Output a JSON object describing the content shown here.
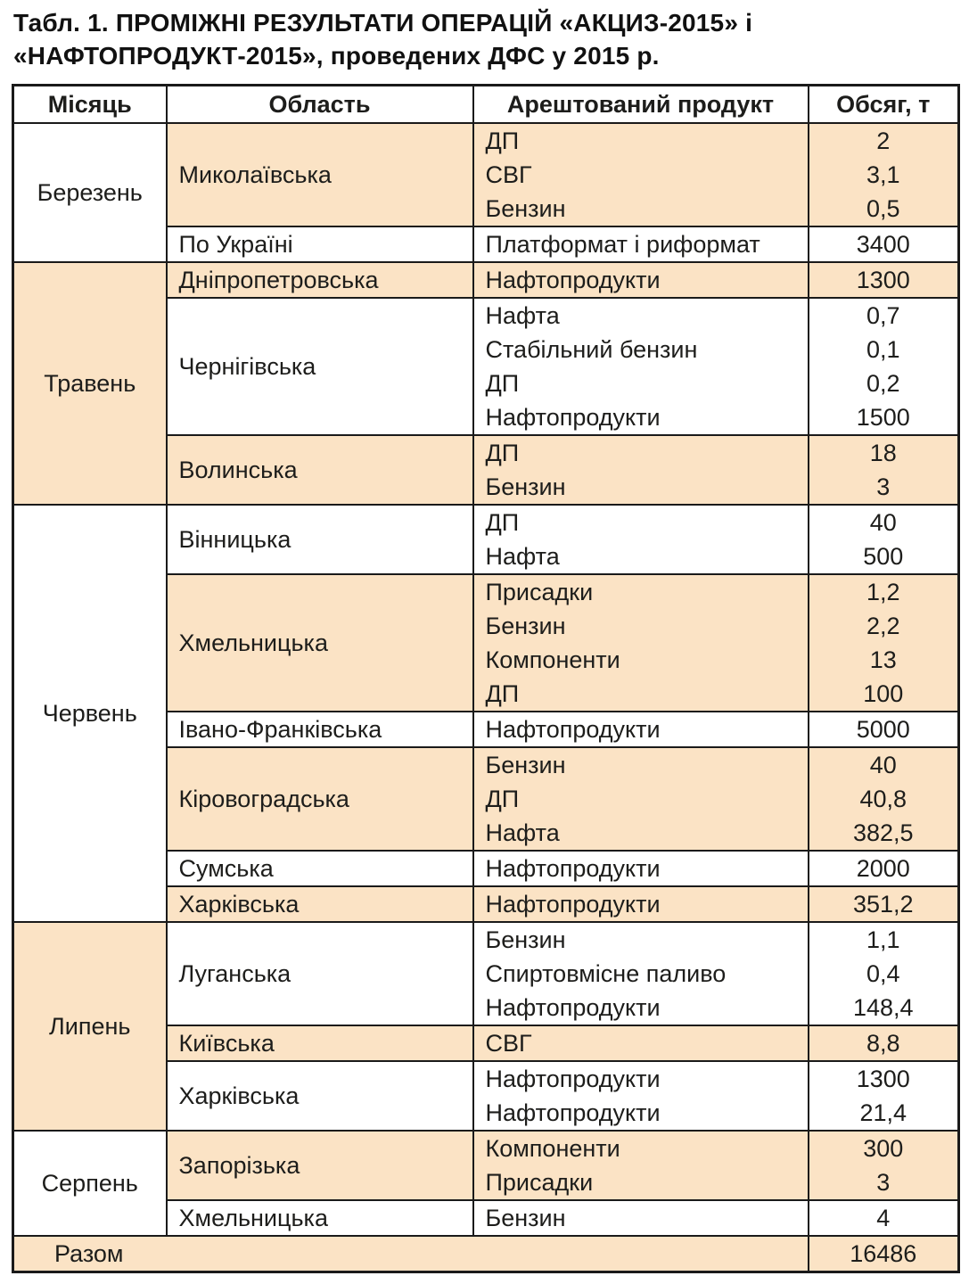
{
  "title_lines": [
    "Табл. 1. ПРОМІЖНІ РЕЗУЛЬТАТИ ОПЕРАЦІЙ «АКЦИЗ-2015» і",
    "«НАФТОПРОДУКТ-2015», проведених ДФС у 2015 р."
  ],
  "colors": {
    "row_shade": "#fbe3c5",
    "border": "#1a1a1a",
    "text": "#1d1d1b",
    "background": "#ffffff"
  },
  "table": {
    "headers": [
      "Місяць",
      "Область",
      "Арештований продукт",
      "Обсяг, т"
    ],
    "months": [
      {
        "name": "Березень",
        "shaded": false,
        "groups": [
          {
            "region": "Миколаївська",
            "shaded": true,
            "items": [
              {
                "product": "ДП",
                "volume": "2"
              },
              {
                "product": "СВГ",
                "volume": "3,1"
              },
              {
                "product": "Бензин",
                "volume": "0,5"
              }
            ]
          },
          {
            "region": "По Україні",
            "shaded": false,
            "items": [
              {
                "product": "Платформат і риформат",
                "volume": "3400"
              }
            ]
          }
        ]
      },
      {
        "name": "Травень",
        "shaded": true,
        "groups": [
          {
            "region": "Дніпропетровська",
            "shaded": true,
            "items": [
              {
                "product": "Нафтопродукти",
                "volume": "1300"
              }
            ]
          },
          {
            "region": "Чернігівська",
            "shaded": false,
            "items": [
              {
                "product": "Нафта",
                "volume": "0,7"
              },
              {
                "product": "Стабільний бензин",
                "volume": "0,1"
              },
              {
                "product": "ДП",
                "volume": "0,2"
              },
              {
                "product": "Нафтопродукти",
                "volume": "1500"
              }
            ]
          },
          {
            "region": "Волинська",
            "shaded": true,
            "items": [
              {
                "product": "ДП",
                "volume": "18"
              },
              {
                "product": "Бензин",
                "volume": "3"
              }
            ]
          }
        ]
      },
      {
        "name": "Червень",
        "shaded": false,
        "groups": [
          {
            "region": "Вінницька",
            "shaded": false,
            "items": [
              {
                "product": "ДП",
                "volume": "40"
              },
              {
                "product": "Нафта",
                "volume": "500"
              }
            ]
          },
          {
            "region": "Хмельницька",
            "shaded": true,
            "items": [
              {
                "product": "Присадки",
                "volume": "1,2"
              },
              {
                "product": "Бензин",
                "volume": "2,2"
              },
              {
                "product": "Компоненти",
                "volume": "13"
              },
              {
                "product": "ДП",
                "volume": "100"
              }
            ]
          },
          {
            "region": "Івано-Франківська",
            "shaded": false,
            "items": [
              {
                "product": "Нафтопродукти",
                "volume": "5000"
              }
            ]
          },
          {
            "region": "Кіровоградська",
            "shaded": true,
            "items": [
              {
                "product": "Бензин",
                "volume": "40"
              },
              {
                "product": "ДП",
                "volume": "40,8"
              },
              {
                "product": "Нафта",
                "volume": "382,5"
              }
            ]
          },
          {
            "region": "Сумська",
            "shaded": false,
            "items": [
              {
                "product": "Нафтопродукти",
                "volume": "2000"
              }
            ]
          },
          {
            "region": "Харківська",
            "shaded": true,
            "items": [
              {
                "product": "Нафтопродукти",
                "volume": "351,2"
              }
            ]
          }
        ]
      },
      {
        "name": "Липень",
        "shaded": true,
        "groups": [
          {
            "region": "Луганська",
            "shaded": false,
            "items": [
              {
                "product": "Бензин",
                "volume": "1,1"
              },
              {
                "product": "Спиртовмісне паливо",
                "volume": "0,4"
              },
              {
                "product": "Нафтопродукти",
                "volume": "148,4"
              }
            ]
          },
          {
            "region": "Київська",
            "shaded": true,
            "items": [
              {
                "product": "СВГ",
                "volume": "8,8"
              }
            ]
          },
          {
            "region": "Харківська",
            "shaded": false,
            "items": [
              {
                "product": "Нафтопродукти",
                "volume": "1300"
              },
              {
                "product": "Нафтопродукти",
                "volume": "21,4"
              }
            ]
          }
        ]
      },
      {
        "name": "Серпень",
        "shaded": false,
        "groups": [
          {
            "region": "Запорізька",
            "shaded": true,
            "items": [
              {
                "product": "Компоненти",
                "volume": "300"
              },
              {
                "product": "Присадки",
                "volume": "3"
              }
            ]
          },
          {
            "region": "Хмельницька",
            "shaded": false,
            "items": [
              {
                "product": "Бензин",
                "volume": "4"
              }
            ]
          }
        ]
      }
    ],
    "total": {
      "label": "Разом",
      "value": "16486"
    }
  }
}
